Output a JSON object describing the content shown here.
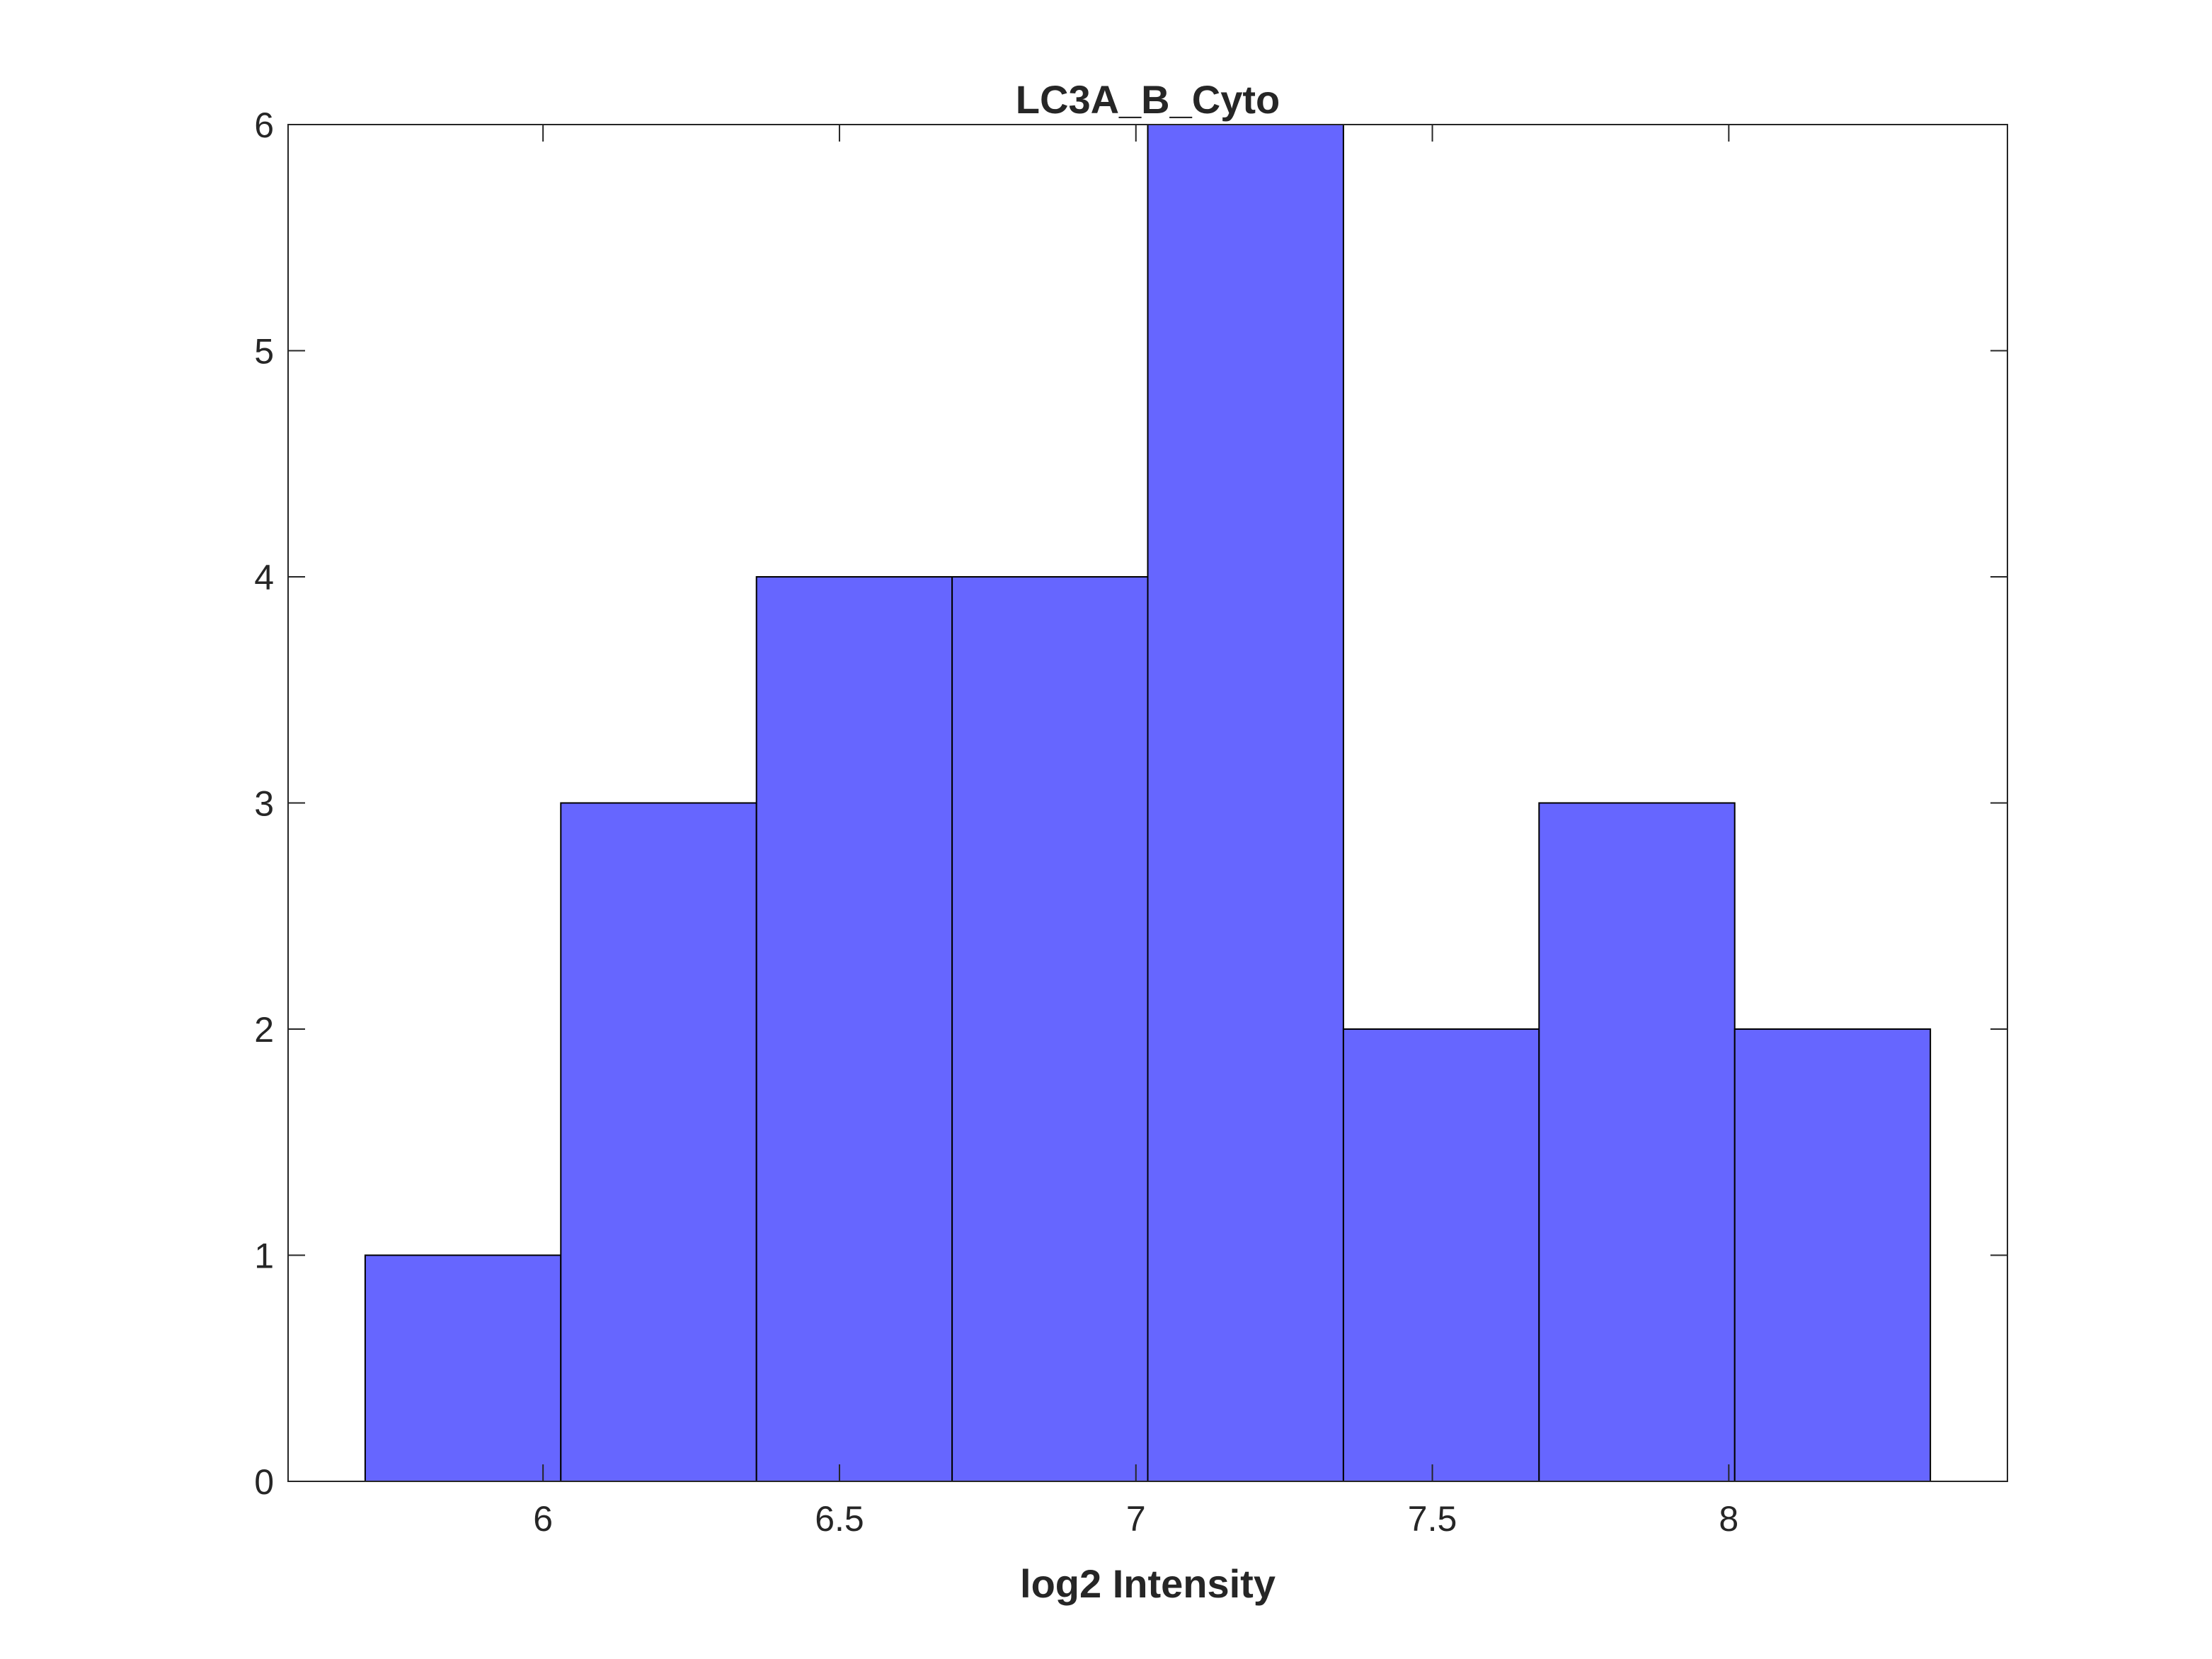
{
  "chart_data": {
    "type": "histogram",
    "title": "LC3A_B_Cyto",
    "xlabel": "log2 Intensity",
    "ylabel": "",
    "bin_edges": [
      5.7,
      6.03,
      6.36,
      6.69,
      7.02,
      7.35,
      7.68,
      8.01,
      8.34
    ],
    "counts": [
      1,
      3,
      4,
      4,
      6,
      2,
      3,
      2
    ],
    "xlim": [
      5.57,
      8.47
    ],
    "ylim": [
      0,
      6
    ],
    "xticks": [
      6,
      6.5,
      7,
      7.5,
      8
    ],
    "xtick_labels": [
      "6",
      "6.5",
      "7",
      "7.5",
      "8"
    ],
    "yticks": [
      0,
      1,
      2,
      3,
      4,
      5,
      6
    ],
    "ytick_labels": [
      "0",
      "1",
      "2",
      "3",
      "4",
      "5",
      "6"
    ],
    "bar_color": "#6666ff",
    "edge_color": "#000000",
    "axes_color": "#262626",
    "grid": false
  }
}
